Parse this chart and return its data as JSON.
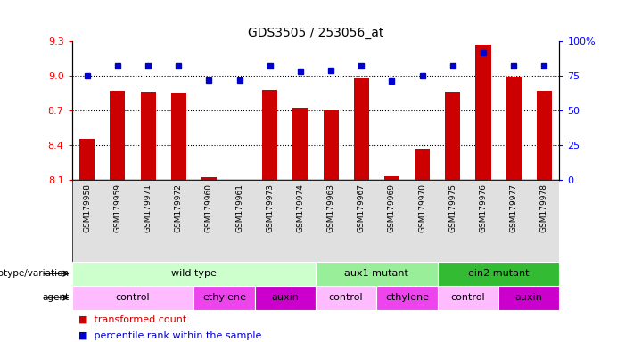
{
  "title": "GDS3505 / 253056_at",
  "samples": [
    "GSM179958",
    "GSM179959",
    "GSM179971",
    "GSM179972",
    "GSM179960",
    "GSM179961",
    "GSM179973",
    "GSM179974",
    "GSM179963",
    "GSM179967",
    "GSM179969",
    "GSM179970",
    "GSM179975",
    "GSM179976",
    "GSM179977",
    "GSM179978"
  ],
  "bar_values": [
    8.45,
    8.87,
    8.86,
    8.85,
    8.12,
    8.1,
    8.88,
    8.72,
    8.7,
    8.98,
    8.13,
    8.37,
    8.86,
    9.27,
    8.99,
    8.87
  ],
  "dot_values": [
    75,
    82,
    82,
    82,
    72,
    72,
    82,
    78,
    79,
    82,
    71,
    75,
    82,
    92,
    82,
    82
  ],
  "ylim_left": [
    8.1,
    9.3
  ],
  "ylim_right": [
    0,
    100
  ],
  "yticks_left": [
    8.1,
    8.4,
    8.7,
    9.0,
    9.3
  ],
  "yticks_right": [
    0,
    25,
    50,
    75,
    100
  ],
  "ytick_labels_right": [
    "0",
    "25",
    "50",
    "75",
    "100%"
  ],
  "hlines": [
    8.4,
    8.7,
    9.0
  ],
  "bar_color": "#cc0000",
  "dot_color": "#0000cc",
  "genotype_groups": [
    {
      "label": "wild type",
      "start": 0,
      "end": 8,
      "color": "#ccffcc"
    },
    {
      "label": "aux1 mutant",
      "start": 8,
      "end": 12,
      "color": "#99ee99"
    },
    {
      "label": "ein2 mutant",
      "start": 12,
      "end": 16,
      "color": "#33bb33"
    }
  ],
  "agent_groups": [
    {
      "label": "control",
      "start": 0,
      "end": 4,
      "color": "#ffbbff"
    },
    {
      "label": "ethylene",
      "start": 4,
      "end": 6,
      "color": "#ee44ee"
    },
    {
      "label": "auxin",
      "start": 6,
      "end": 8,
      "color": "#cc00cc"
    },
    {
      "label": "control",
      "start": 8,
      "end": 10,
      "color": "#ffbbff"
    },
    {
      "label": "ethylene",
      "start": 10,
      "end": 12,
      "color": "#ee44ee"
    },
    {
      "label": "control",
      "start": 12,
      "end": 14,
      "color": "#ffbbff"
    },
    {
      "label": "auxin",
      "start": 14,
      "end": 16,
      "color": "#cc00cc"
    }
  ]
}
